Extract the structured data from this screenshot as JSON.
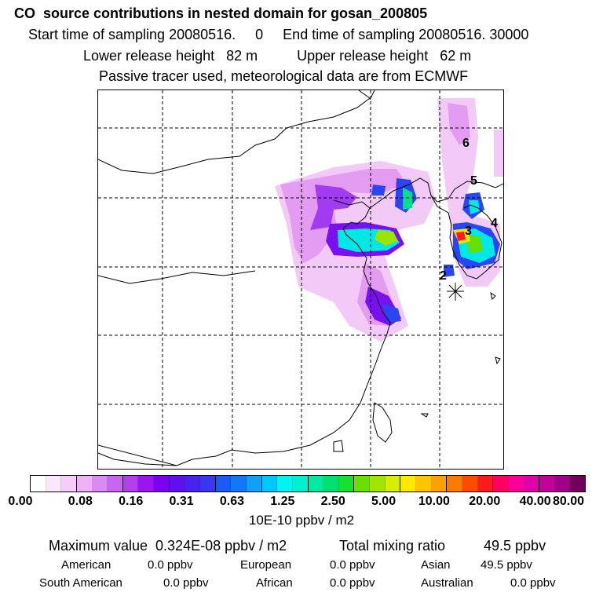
{
  "header": {
    "title": "CO  source contributions in nested domain for gosan_200805",
    "line1": "Start time of sampling 20080516.     0     End time of sampling 20080516. 30000",
    "line2": "Lower release height   82 m          Upper release height   62 m",
    "line3": "Passive tracer used, meteorological data are from ECMWF"
  },
  "map": {
    "station_labels": [
      "6",
      "5",
      "4",
      "3",
      "2"
    ],
    "receptor_symbol": "star-receptor",
    "grid": "dashed"
  },
  "colorbar": {
    "tick_labels": [
      "0.00",
      "0.08",
      "0.16",
      "0.31",
      "0.63",
      "1.25",
      "2.50",
      "5.00",
      "10.00",
      "20.00",
      "40.00",
      "80.00"
    ],
    "colors": [
      "#ffffff",
      "#fbe6fb",
      "#f6ccf8",
      "#efb2f6",
      "#d98af3",
      "#c866f2",
      "#b23ef0",
      "#9a16ef",
      "#7a00ef",
      "#6010ee",
      "#4a22f0",
      "#3a36f2",
      "#1a5af5",
      "#1478f6",
      "#10a0f8",
      "#00c8fa",
      "#00f4f0",
      "#00f0d0",
      "#00eaa4",
      "#00e070",
      "#18e030",
      "#6ae000",
      "#a2e600",
      "#d6ee00",
      "#ffe800",
      "#ffc400",
      "#ffa000",
      "#ff7a00",
      "#ff4a00",
      "#ff1a20",
      "#ff0060",
      "#f8009a",
      "#e000a8",
      "#c4009c",
      "#a00088",
      "#70005a"
    ],
    "units": "10E-10 ppbv / m2"
  },
  "stats": {
    "max_label": "Maximum value  0.324E-08 ppbv / m2",
    "total_label": "Total mixing ratio",
    "total_value": "49.5 ppbv",
    "regions": [
      {
        "name": "American",
        "value": "0.0 ppbv"
      },
      {
        "name": "European",
        "value": "0.0 ppbv"
      },
      {
        "name": "Asian",
        "value": "49.5 ppbv"
      },
      {
        "name": "South American",
        "value": "0.0 ppbv"
      },
      {
        "name": "African",
        "value": "0.0 ppbv"
      },
      {
        "name": "Australian",
        "value": "0.0 ppbv"
      }
    ]
  }
}
